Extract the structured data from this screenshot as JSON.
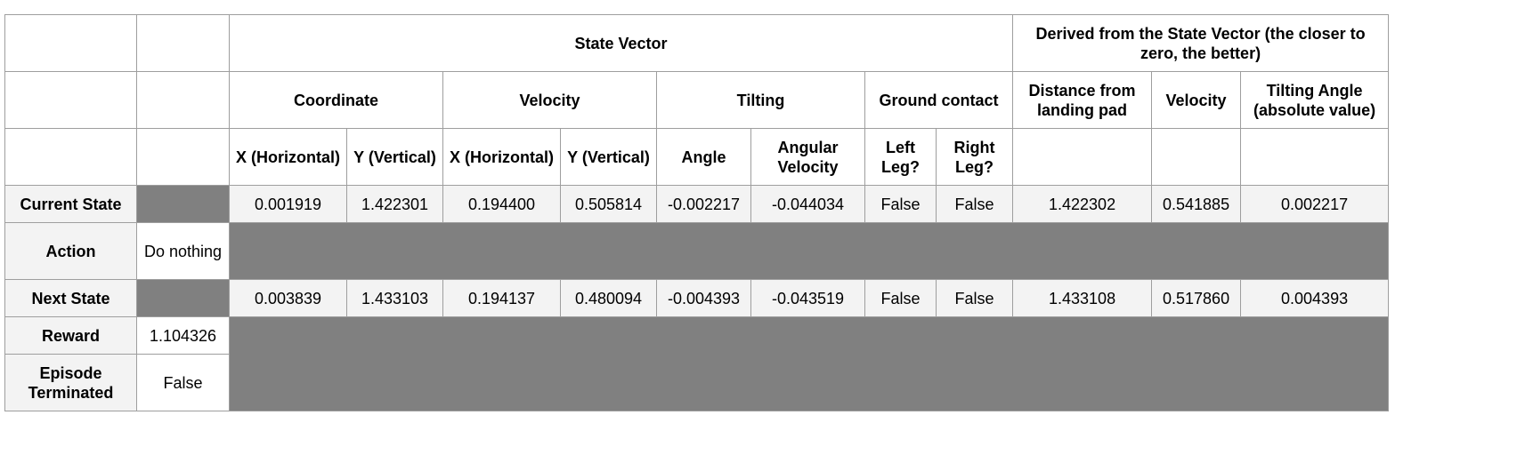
{
  "headers": {
    "state_vector": "State Vector",
    "derived": "Derived from the State Vector (the closer to zero, the better)",
    "coordinate": "Coordinate",
    "velocity": "Velocity",
    "tilting": "Tilting",
    "ground_contact": "Ground contact",
    "distance_from_pad": "Distance from landing pad",
    "derived_velocity": "Velocity",
    "tilting_angle_abs": "Tilting Angle (absolute value)",
    "coord_x": "X (Horizontal)",
    "coord_y": "Y (Vertical)",
    "vel_x": "X (Horizontal)",
    "vel_y": "Y (Vertical)",
    "angle": "Angle",
    "angular_velocity": "Angular Velocity",
    "left_leg": "Left Leg?",
    "right_leg": "Right Leg?"
  },
  "rows": {
    "current": {
      "label": "Current State",
      "values": [
        "0.001919",
        "1.422301",
        "0.194400",
        "0.505814",
        "-0.002217",
        "-0.044034",
        "False",
        "False",
        "1.422302",
        "0.541885",
        "0.002217"
      ]
    },
    "action": {
      "label": "Action",
      "value": "Do nothing"
    },
    "next": {
      "label": "Next State",
      "values": [
        "0.003839",
        "1.433103",
        "0.194137",
        "0.480094",
        "-0.004393",
        "-0.043519",
        "False",
        "False",
        "1.433108",
        "0.517860",
        "0.004393"
      ]
    },
    "reward": {
      "label": "Reward",
      "value": "1.104326"
    },
    "episode_terminated": {
      "label": "Episode Terminated",
      "value": "False"
    }
  },
  "colors": {
    "row_header_bg": "#f3f3f3",
    "value_bg": "#f3f3f3",
    "blocked_cell": "#808080",
    "border": "#9e9e9e"
  }
}
